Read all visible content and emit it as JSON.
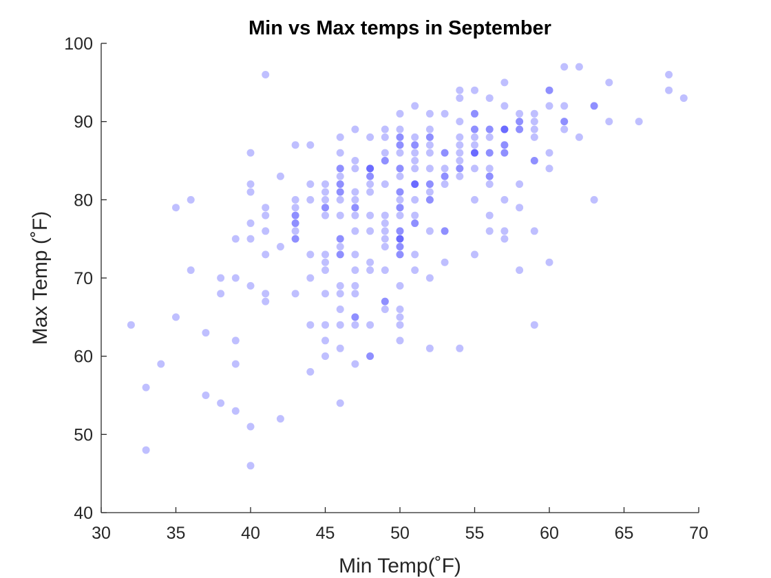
{
  "chart_data": {
    "type": "scatter",
    "title": "Min vs Max temps in September",
    "xlabel": "Min Temp(˚F)",
    "ylabel": "Max Temp (˚F)",
    "xlim": [
      30,
      70
    ],
    "ylim": [
      40,
      100
    ],
    "xticks": [
      "30",
      "35",
      "40",
      "45",
      "50",
      "55",
      "60",
      "65",
      "70"
    ],
    "yticks": [
      "40",
      "50",
      "60",
      "70",
      "80",
      "90",
      "100"
    ],
    "grid": false,
    "marker_color": "#0000ff",
    "marker_alpha": 0.25,
    "series": [
      {
        "points": [
          [
            32,
            64
          ],
          [
            33,
            56
          ],
          [
            33,
            48
          ],
          [
            34,
            59
          ],
          [
            35,
            79
          ],
          [
            35,
            65
          ],
          [
            36,
            80
          ],
          [
            36,
            71
          ],
          [
            37,
            63
          ],
          [
            37,
            55
          ],
          [
            38,
            70
          ],
          [
            38,
            68
          ],
          [
            38,
            54
          ],
          [
            39,
            75
          ],
          [
            39,
            70
          ],
          [
            39,
            62
          ],
          [
            39,
            59
          ],
          [
            39,
            53
          ],
          [
            40,
            86
          ],
          [
            40,
            82
          ],
          [
            40,
            81
          ],
          [
            40,
            77
          ],
          [
            40,
            75
          ],
          [
            40,
            69
          ],
          [
            40,
            51
          ],
          [
            40,
            46
          ],
          [
            41,
            96
          ],
          [
            41,
            79
          ],
          [
            41,
            78
          ],
          [
            41,
            76
          ],
          [
            41,
            73
          ],
          [
            41,
            68
          ],
          [
            41,
            67
          ],
          [
            42,
            83
          ],
          [
            42,
            74
          ],
          [
            42,
            52
          ],
          [
            43,
            87
          ],
          [
            43,
            80
          ],
          [
            43,
            79
          ],
          [
            43,
            78
          ],
          [
            43,
            78
          ],
          [
            43,
            77
          ],
          [
            43,
            77
          ],
          [
            43,
            76
          ],
          [
            43,
            75
          ],
          [
            43,
            75
          ],
          [
            43,
            68
          ],
          [
            44,
            87
          ],
          [
            44,
            82
          ],
          [
            44,
            80
          ],
          [
            44,
            73
          ],
          [
            44,
            70
          ],
          [
            44,
            64
          ],
          [
            44,
            58
          ],
          [
            45,
            82
          ],
          [
            45,
            81
          ],
          [
            45,
            80
          ],
          [
            45,
            79
          ],
          [
            45,
            79
          ],
          [
            45,
            78
          ],
          [
            45,
            73
          ],
          [
            45,
            72
          ],
          [
            45,
            71
          ],
          [
            45,
            68
          ],
          [
            45,
            64
          ],
          [
            45,
            62
          ],
          [
            45,
            60
          ],
          [
            46,
            88
          ],
          [
            46,
            86
          ],
          [
            46,
            84
          ],
          [
            46,
            84
          ],
          [
            46,
            83
          ],
          [
            46,
            82
          ],
          [
            46,
            82
          ],
          [
            46,
            81
          ],
          [
            46,
            81
          ],
          [
            46,
            80
          ],
          [
            46,
            78
          ],
          [
            46,
            75
          ],
          [
            46,
            75
          ],
          [
            46,
            74
          ],
          [
            46,
            73
          ],
          [
            46,
            73
          ],
          [
            46,
            69
          ],
          [
            46,
            68
          ],
          [
            46,
            66
          ],
          [
            46,
            64
          ],
          [
            46,
            61
          ],
          [
            46,
            54
          ],
          [
            47,
            89
          ],
          [
            47,
            85
          ],
          [
            47,
            84
          ],
          [
            47,
            81
          ],
          [
            47,
            80
          ],
          [
            47,
            79
          ],
          [
            47,
            79
          ],
          [
            47,
            78
          ],
          [
            47,
            76
          ],
          [
            47,
            73
          ],
          [
            47,
            71
          ],
          [
            47,
            69
          ],
          [
            47,
            68
          ],
          [
            47,
            65
          ],
          [
            47,
            65
          ],
          [
            47,
            64
          ],
          [
            47,
            59
          ],
          [
            48,
            88
          ],
          [
            48,
            84
          ],
          [
            48,
            84
          ],
          [
            48,
            84
          ],
          [
            48,
            83
          ],
          [
            48,
            83
          ],
          [
            48,
            82
          ],
          [
            48,
            81
          ],
          [
            48,
            78
          ],
          [
            48,
            76
          ],
          [
            48,
            72
          ],
          [
            48,
            71
          ],
          [
            48,
            64
          ],
          [
            48,
            60
          ],
          [
            48,
            60
          ],
          [
            49,
            89
          ],
          [
            49,
            88
          ],
          [
            49,
            86
          ],
          [
            49,
            85
          ],
          [
            49,
            85
          ],
          [
            49,
            82
          ],
          [
            49,
            78
          ],
          [
            49,
            77
          ],
          [
            49,
            76
          ],
          [
            49,
            75
          ],
          [
            49,
            74
          ],
          [
            49,
            71
          ],
          [
            49,
            67
          ],
          [
            49,
            67
          ],
          [
            49,
            66
          ],
          [
            50,
            91
          ],
          [
            50,
            89
          ],
          [
            50,
            88
          ],
          [
            50,
            88
          ],
          [
            50,
            87
          ],
          [
            50,
            87
          ],
          [
            50,
            86
          ],
          [
            50,
            84
          ],
          [
            50,
            84
          ],
          [
            50,
            83
          ],
          [
            50,
            81
          ],
          [
            50,
            81
          ],
          [
            50,
            80
          ],
          [
            50,
            79
          ],
          [
            50,
            79
          ],
          [
            50,
            78
          ],
          [
            50,
            76
          ],
          [
            50,
            76
          ],
          [
            50,
            75
          ],
          [
            50,
            75
          ],
          [
            50,
            75
          ],
          [
            50,
            74
          ],
          [
            50,
            74
          ],
          [
            50,
            73
          ],
          [
            50,
            73
          ],
          [
            50,
            69
          ],
          [
            50,
            66
          ],
          [
            50,
            65
          ],
          [
            50,
            64
          ],
          [
            50,
            62
          ],
          [
            51,
            92
          ],
          [
            51,
            88
          ],
          [
            51,
            87
          ],
          [
            51,
            87
          ],
          [
            51,
            86
          ],
          [
            51,
            85
          ],
          [
            51,
            84
          ],
          [
            51,
            82
          ],
          [
            51,
            82
          ],
          [
            51,
            82
          ],
          [
            51,
            80
          ],
          [
            51,
            78
          ],
          [
            51,
            77
          ],
          [
            51,
            77
          ],
          [
            51,
            73
          ],
          [
            51,
            71
          ],
          [
            52,
            91
          ],
          [
            52,
            89
          ],
          [
            52,
            88
          ],
          [
            52,
            88
          ],
          [
            52,
            87
          ],
          [
            52,
            86
          ],
          [
            52,
            84
          ],
          [
            52,
            82
          ],
          [
            52,
            82
          ],
          [
            52,
            81
          ],
          [
            52,
            80
          ],
          [
            52,
            80
          ],
          [
            52,
            76
          ],
          [
            52,
            70
          ],
          [
            52,
            61
          ],
          [
            53,
            91
          ],
          [
            53,
            86
          ],
          [
            53,
            86
          ],
          [
            53,
            84
          ],
          [
            53,
            83
          ],
          [
            53,
            83
          ],
          [
            53,
            82
          ],
          [
            53,
            76
          ],
          [
            53,
            76
          ],
          [
            53,
            72
          ],
          [
            54,
            94
          ],
          [
            54,
            93
          ],
          [
            54,
            90
          ],
          [
            54,
            88
          ],
          [
            54,
            87
          ],
          [
            54,
            86
          ],
          [
            54,
            85
          ],
          [
            54,
            84
          ],
          [
            54,
            84
          ],
          [
            54,
            83
          ],
          [
            54,
            61
          ],
          [
            55,
            94
          ],
          [
            55,
            91
          ],
          [
            55,
            91
          ],
          [
            55,
            89
          ],
          [
            55,
            89
          ],
          [
            55,
            88
          ],
          [
            55,
            87
          ],
          [
            55,
            86
          ],
          [
            55,
            86
          ],
          [
            55,
            86
          ],
          [
            55,
            84
          ],
          [
            55,
            80
          ],
          [
            55,
            73
          ],
          [
            56,
            93
          ],
          [
            56,
            89
          ],
          [
            56,
            89
          ],
          [
            56,
            88
          ],
          [
            56,
            86
          ],
          [
            56,
            86
          ],
          [
            56,
            84
          ],
          [
            56,
            83
          ],
          [
            56,
            83
          ],
          [
            56,
            82
          ],
          [
            56,
            78
          ],
          [
            56,
            76
          ],
          [
            57,
            95
          ],
          [
            57,
            92
          ],
          [
            57,
            89
          ],
          [
            57,
            89
          ],
          [
            57,
            89
          ],
          [
            57,
            87
          ],
          [
            57,
            87
          ],
          [
            57,
            86
          ],
          [
            57,
            86
          ],
          [
            57,
            80
          ],
          [
            57,
            76
          ],
          [
            57,
            75
          ],
          [
            58,
            91
          ],
          [
            58,
            90
          ],
          [
            58,
            90
          ],
          [
            58,
            89
          ],
          [
            58,
            89
          ],
          [
            58,
            82
          ],
          [
            58,
            79
          ],
          [
            58,
            71
          ],
          [
            59,
            91
          ],
          [
            59,
            90
          ],
          [
            59,
            89
          ],
          [
            59,
            88
          ],
          [
            59,
            85
          ],
          [
            59,
            85
          ],
          [
            59,
            76
          ],
          [
            59,
            64
          ],
          [
            60,
            94
          ],
          [
            60,
            94
          ],
          [
            60,
            92
          ],
          [
            60,
            86
          ],
          [
            60,
            84
          ],
          [
            60,
            72
          ],
          [
            61,
            97
          ],
          [
            61,
            92
          ],
          [
            61,
            90
          ],
          [
            61,
            90
          ],
          [
            61,
            89
          ],
          [
            62,
            97
          ],
          [
            62,
            88
          ],
          [
            63,
            92
          ],
          [
            63,
            92
          ],
          [
            63,
            80
          ],
          [
            64,
            95
          ],
          [
            64,
            90
          ],
          [
            66,
            90
          ],
          [
            68,
            96
          ],
          [
            68,
            94
          ],
          [
            69,
            93
          ]
        ]
      }
    ]
  }
}
